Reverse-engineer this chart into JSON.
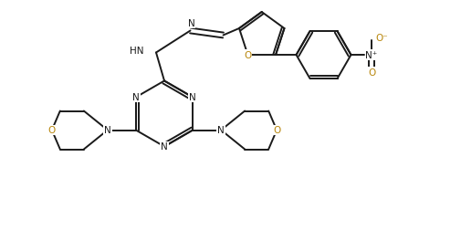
{
  "bg_color": "#ffffff",
  "bond_color": "#1a1a1a",
  "n_color": "#1a1a1a",
  "o_color": "#b8860b",
  "lw": 1.4,
  "figsize": [
    5.05,
    2.53
  ],
  "dpi": 100,
  "xlim": [
    0,
    10.1
  ],
  "ylim": [
    0,
    5.06
  ]
}
